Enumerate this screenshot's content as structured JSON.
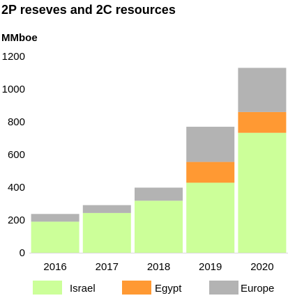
{
  "title": "2P reseves and 2C resources",
  "unit_label": "MMboe",
  "colors": {
    "Israel": "#ccff99",
    "Egypt": "#ff9933",
    "Europe": "#b3b3b3"
  },
  "chart_data": {
    "type": "bar",
    "stacked": true,
    "title": "2P reseves and 2C resources",
    "ylabel": "MMboe",
    "xlabel": "",
    "categories": [
      "2016",
      "2017",
      "2018",
      "2019",
      "2020"
    ],
    "series": [
      {
        "name": "Israel",
        "values": [
          190,
          243,
          318,
          428,
          733
        ]
      },
      {
        "name": "Egypt",
        "values": [
          0,
          0,
          0,
          127,
          127
        ]
      },
      {
        "name": "Europe",
        "values": [
          47,
          48,
          80,
          215,
          270
        ]
      }
    ],
    "ylim": [
      0,
      1200
    ],
    "yticks": [
      "0",
      "200",
      "400",
      "600",
      "800",
      "1000",
      "1200"
    ],
    "grid": false,
    "legend": "bottom"
  }
}
